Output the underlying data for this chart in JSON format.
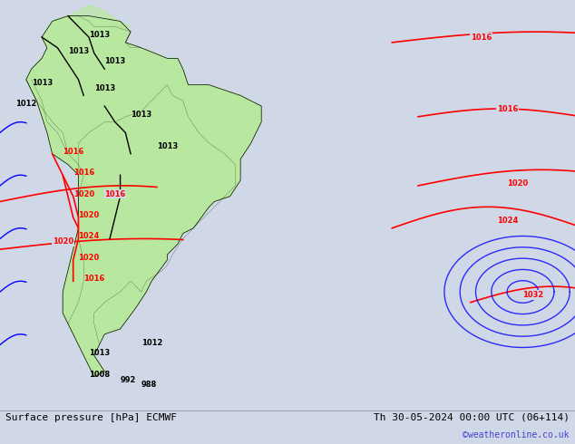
{
  "title_left": "Surface pressure [hPa] ECMWF",
  "title_right": "Th 30-05-2024 00:00 UTC (06+114)",
  "copyright": "©weatheronline.co.uk",
  "background_color": "#d0d8e8",
  "land_color": "#b8e8a0",
  "figsize": [
    6.34,
    4.9
  ],
  "dpi": 100
}
